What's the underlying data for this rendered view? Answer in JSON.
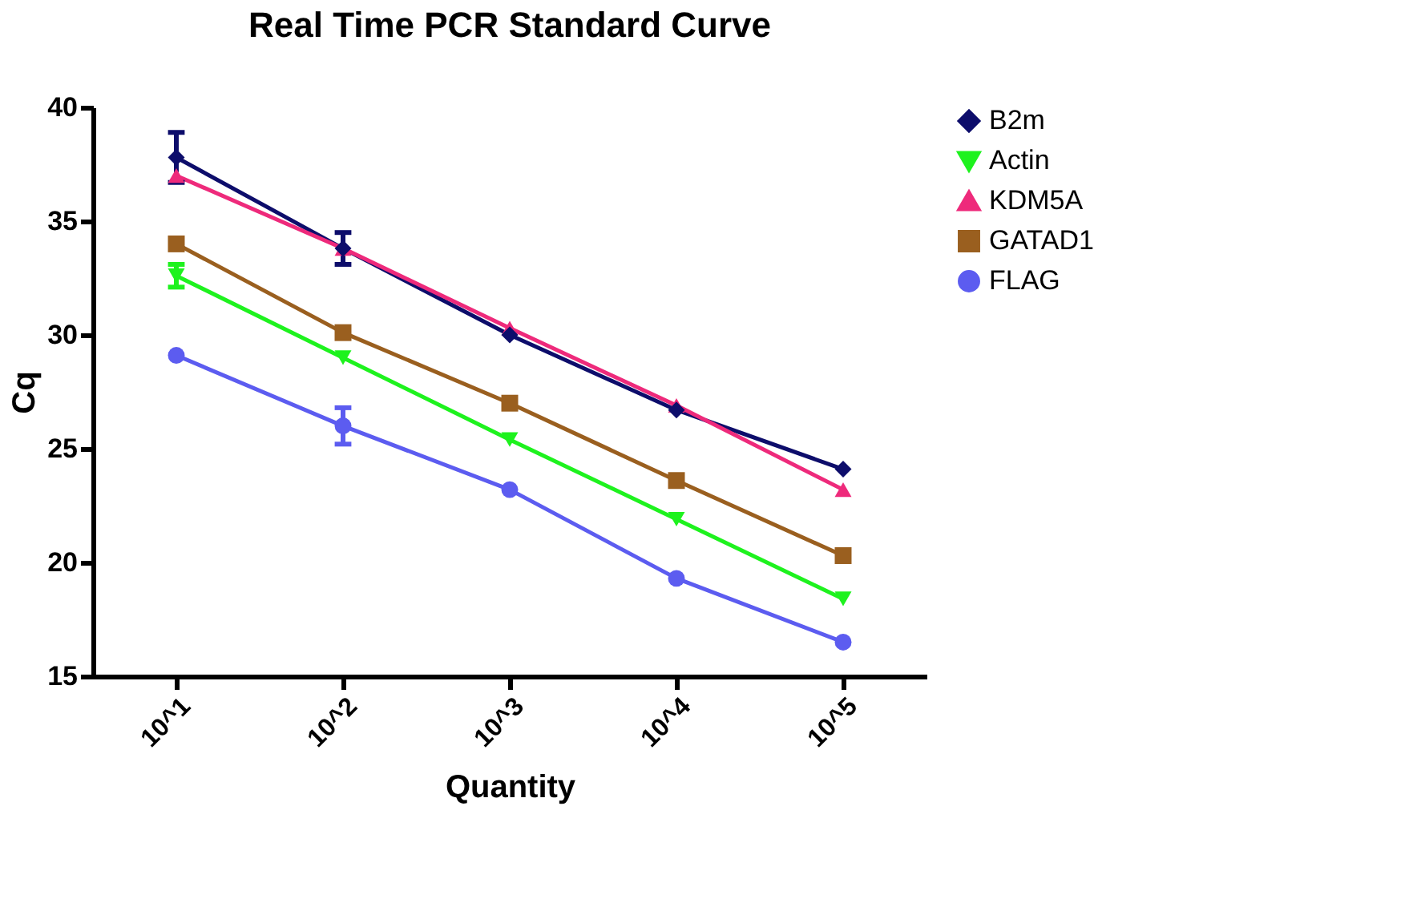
{
  "chart_data": {
    "type": "line",
    "title": "Real Time PCR Standard Curve",
    "xlabel": "Quantity",
    "ylabel": "Cq",
    "categories": [
      "10^1",
      "10^2",
      "10^3",
      "10^4",
      "10^5"
    ],
    "series": [
      {
        "name": "B2m",
        "color": "#0d0d6b",
        "marker": "diamond",
        "values": [
          37.8,
          33.8,
          30.0,
          26.7,
          24.1
        ],
        "errors": [
          1.1,
          0.7,
          null,
          null,
          null
        ]
      },
      {
        "name": "Actin",
        "color": "#1ef21e",
        "marker": "triangle-down",
        "values": [
          32.6,
          29.0,
          25.4,
          21.9,
          18.4
        ],
        "errors": [
          0.5,
          null,
          null,
          null,
          null
        ]
      },
      {
        "name": "KDM5A",
        "color": "#ee2a7b",
        "marker": "triangle",
        "values": [
          37.0,
          33.8,
          30.3,
          26.9,
          23.2
        ]
      },
      {
        "name": "GATAD1",
        "color": "#9a5f1f",
        "marker": "square",
        "values": [
          34.0,
          30.1,
          27.0,
          23.6,
          20.3
        ]
      },
      {
        "name": "FLAG",
        "color": "#5c5cf0",
        "marker": "circle",
        "values": [
          29.1,
          26.0,
          23.2,
          19.3,
          16.5
        ],
        "errors": [
          null,
          0.8,
          null,
          null,
          null
        ]
      }
    ],
    "ylim": [
      15,
      40
    ],
    "yticks": [
      15,
      20,
      25,
      30,
      35,
      40
    ],
    "grid": false,
    "legend": "right"
  }
}
